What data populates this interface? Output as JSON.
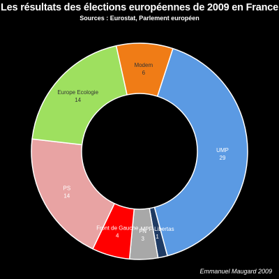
{
  "header": {
    "title": "Les résultats des élections européennes de 2009 en France",
    "subtitle": "Sources : Eurostat, Parlement européen"
  },
  "footer": {
    "credit": "Emmanuel Maugard 2009"
  },
  "chart_data": {
    "type": "pie",
    "style": "donut",
    "title": "Les résultats des élections européennes de 2009 en France",
    "subtitle": "Sources : Eurostat, Parlement européen",
    "slices": [
      {
        "label": "UMP",
        "value": 29,
        "color": "#5b9ae3",
        "label_color": "#ffffff"
      },
      {
        "label": "MPF-Libertas",
        "value": 1,
        "color": "#1f3b63",
        "label_color": "#ffffff"
      },
      {
        "label": "FN",
        "value": 3,
        "color": "#a8a8a8",
        "label_color": "#ffffff"
      },
      {
        "label": "Front de Gauche",
        "value": 4,
        "color": "#ff0000",
        "label_color": "#ffffff"
      },
      {
        "label": "PS",
        "value": 14,
        "color": "#e8a3a3",
        "label_color": "#ffffff"
      },
      {
        "label": "Europe Ecologie",
        "value": 14,
        "color": "#9ee05f",
        "label_color": "#333333"
      },
      {
        "label": "Modem",
        "value": 6,
        "color": "#f07c16",
        "label_color": "#333333"
      }
    ],
    "legend": "none"
  }
}
